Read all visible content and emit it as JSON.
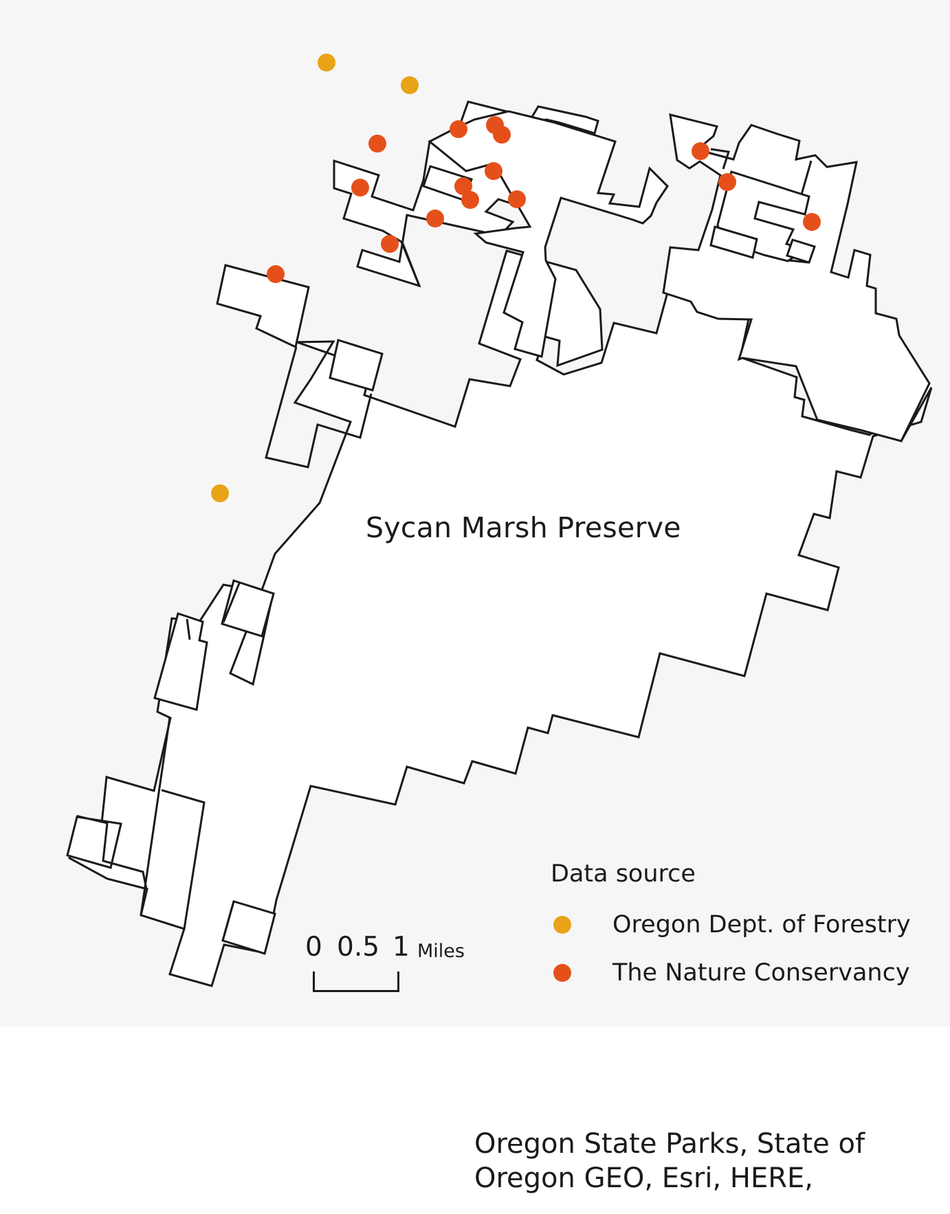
{
  "map": {
    "feature_label": "Sycan Marsh Preserve",
    "legend": {
      "title": "Data source",
      "items": [
        {
          "label": "Oregon Dept. of Forestry",
          "color": "#e8a317"
        },
        {
          "label": "The Nature Conservancy",
          "color": "#e5501a"
        }
      ]
    },
    "scale_bar": {
      "labels": [
        "0",
        "0.5",
        "1"
      ],
      "unit": "Miles"
    },
    "attribution": [
      "Oregon State Parks, State of",
      "Oregon GEO, Esri, HERE,"
    ],
    "colors": {
      "background": "#f6f6f6",
      "preserve_fill": "#ffffff",
      "preserve_outline": "#1a1a1a"
    }
  }
}
